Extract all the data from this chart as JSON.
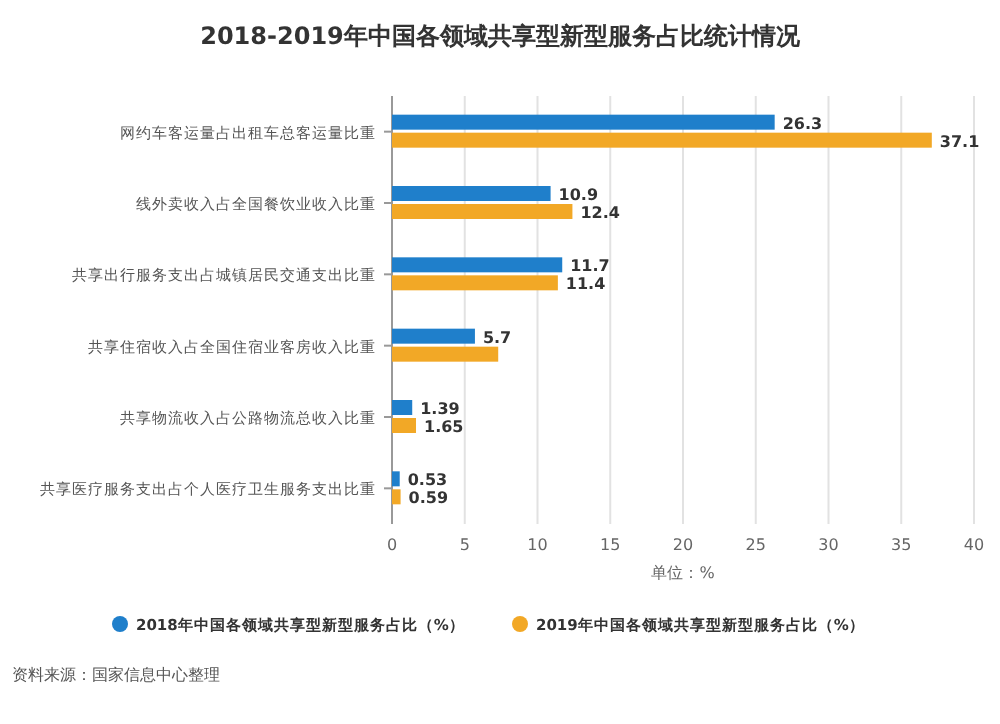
{
  "chart_data": {
    "type": "bar",
    "orientation": "horizontal",
    "title": "2018-2019年中国各领域共享型新型服务占比统计情况",
    "xlabel": "单位：%",
    "categories": [
      "网约车客运量占出租车总客运量比重",
      "线外卖收入占全国餐饮业收入比重",
      "共享出行服务支出占城镇居民交通支出比重",
      "共享住宿收入占全国住宿业客房收入比重",
      "共享物流收入占公路物流总收入比重",
      "共享医疗服务支出占个人医疗卫生服务支出比重"
    ],
    "series": [
      {
        "name": "2018年中国各领域共享型新型服务占比（%）",
        "color": "#1f7fcb",
        "values": [
          26.3,
          10.9,
          11.7,
          5.7,
          1.39,
          0.53
        ],
        "value_labels": [
          "26.3",
          "10.9",
          "11.7",
          "5.7",
          "1.39",
          "0.53"
        ]
      },
      {
        "name": "2019年中国各领域共享型新型服务占比（%）",
        "color": "#f2a826",
        "values": [
          37.1,
          12.4,
          11.4,
          7.3,
          1.65,
          0.59
        ],
        "value_labels": [
          "37.1",
          "12.4",
          "11.4",
          null,
          "1.65",
          "0.59"
        ]
      }
    ],
    "xlim": [
      0,
      40
    ],
    "xticks": [
      0,
      5,
      10,
      15,
      20,
      25,
      30,
      35,
      40
    ],
    "grid": "x",
    "legend": "bottom",
    "annotations": [
      "资料来源：国家信息中心整理"
    ]
  }
}
